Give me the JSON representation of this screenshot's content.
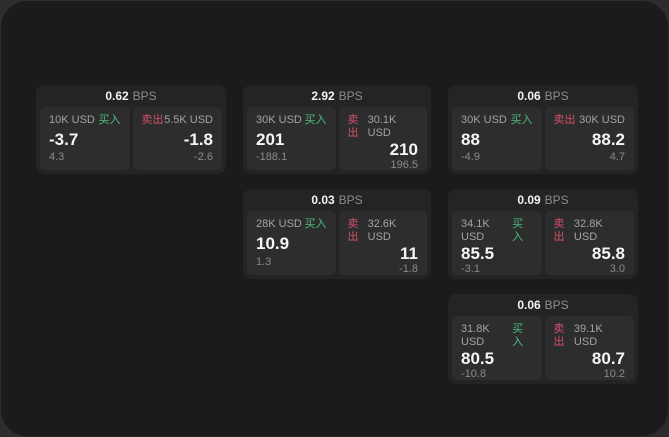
{
  "page": {
    "bps_suffix": "BPS",
    "buy_label": "买入",
    "sell_label": "卖出"
  },
  "colors": {
    "buy": "#4cbd82",
    "sell": "#cf5069",
    "panel_bg": "#1b1b1b",
    "card_bg": "#242424",
    "tile_bg": "#2d2d2d"
  },
  "cards": [
    {
      "bps": "0.62",
      "col": 1,
      "row": 1,
      "buy": {
        "size": "10K USD",
        "price": "-3.7",
        "change": "4.3"
      },
      "sell": {
        "size": "5.5K USD",
        "price": "-1.8",
        "change": "-2.6"
      }
    },
    {
      "bps": "2.92",
      "col": 2,
      "row": 1,
      "buy": {
        "size": "30K USD",
        "price": "201",
        "change": "-188.1"
      },
      "sell": {
        "size": "30.1K USD",
        "price": "210",
        "change": "196.5"
      }
    },
    {
      "bps": "0.06",
      "col": 3,
      "row": 1,
      "buy": {
        "size": "30K USD",
        "price": "88",
        "change": "-4.9"
      },
      "sell": {
        "size": "30K USD",
        "price": "88.2",
        "change": "4.7"
      }
    },
    {
      "bps": "0.03",
      "col": 2,
      "row": 2,
      "buy": {
        "size": "28K USD",
        "price": "10.9",
        "change": "1.3"
      },
      "sell": {
        "size": "32.6K USD",
        "price": "11",
        "change": "-1.8"
      }
    },
    {
      "bps": "0.09",
      "col": 3,
      "row": 2,
      "buy": {
        "size": "34.1K USD",
        "price": "85.5",
        "change": "-3.1"
      },
      "sell": {
        "size": "32.8K USD",
        "price": "85.8",
        "change": "3.0"
      }
    },
    {
      "bps": "0.06",
      "col": 3,
      "row": 3,
      "buy": {
        "size": "31.8K USD",
        "price": "80.5",
        "change": "-10.8"
      },
      "sell": {
        "size": "39.1K USD",
        "price": "80.7",
        "change": "10.2"
      }
    }
  ]
}
